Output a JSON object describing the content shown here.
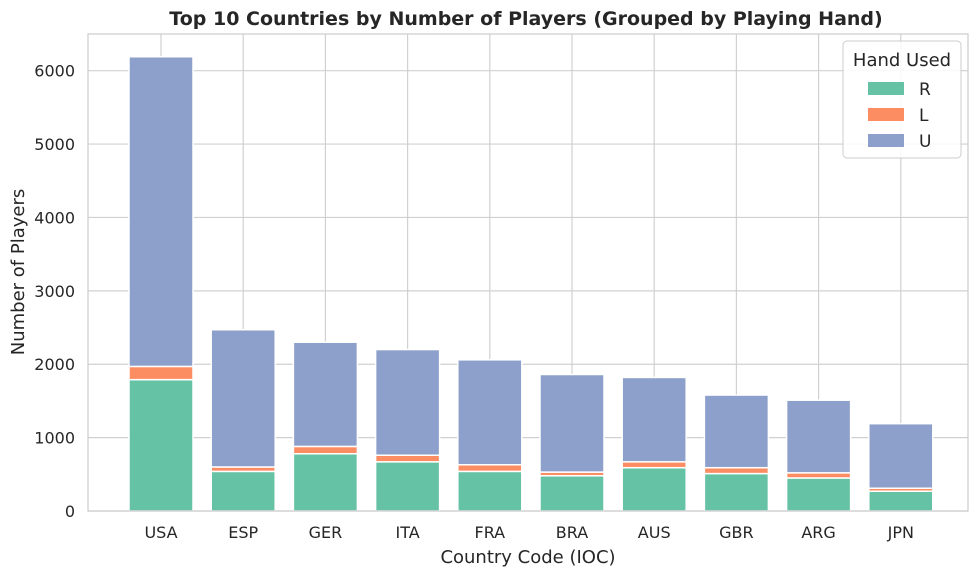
{
  "chart_data": {
    "type": "bar",
    "stacked": true,
    "title": "Top 10 Countries by Number of Players (Grouped by Playing Hand)",
    "xlabel": "Country Code (IOC)",
    "ylabel": "Number of Players",
    "categories": [
      "USA",
      "ESP",
      "GER",
      "ITA",
      "FRA",
      "BRA",
      "AUS",
      "GBR",
      "ARG",
      "JPN"
    ],
    "ylim": [
      0,
      6500
    ],
    "yticks": [
      0,
      1000,
      2000,
      3000,
      4000,
      5000,
      6000
    ],
    "grid": true,
    "legend_title": "Hand Used",
    "legend_position": "top-right",
    "series": [
      {
        "name": "R",
        "color": "#66c2a5",
        "values": [
          1790,
          540,
          780,
          670,
          540,
          480,
          590,
          510,
          450,
          270
        ]
      },
      {
        "name": "L",
        "color": "#fc8d62",
        "values": [
          180,
          60,
          100,
          90,
          90,
          50,
          80,
          80,
          70,
          40
        ]
      },
      {
        "name": "U",
        "color": "#8da0cb",
        "values": [
          4220,
          1870,
          1420,
          1440,
          1430,
          1330,
          1150,
          990,
          990,
          880
        ]
      }
    ]
  }
}
